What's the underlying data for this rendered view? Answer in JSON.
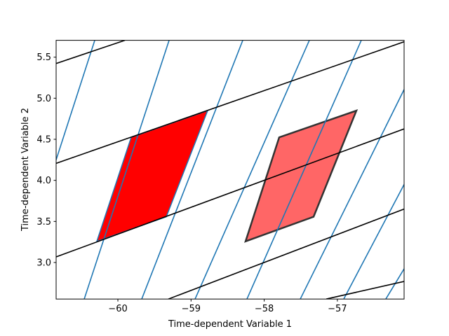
{
  "chart_data": {
    "type": "line",
    "xlabel": "Time-dependent Variable 1",
    "ylabel": "Time-dependent Variable 2",
    "xlim": [
      -60.844,
      -56.088
    ],
    "ylim": [
      2.555,
      5.705
    ],
    "xticks": [
      {
        "value": -60,
        "label": "−60"
      },
      {
        "value": -59,
        "label": "−59"
      },
      {
        "value": -58,
        "label": "−58"
      },
      {
        "value": -57,
        "label": "−57"
      }
    ],
    "yticks": [
      {
        "value": 3,
        "label": "3.0"
      },
      3.5,
      {
        "value": 4,
        "label": "4.0"
      },
      4.5,
      {
        "value": 5,
        "label": "5.0"
      },
      5.5
    ],
    "series": [
      {
        "color": "#1f77b4",
        "x": [
          -60.844,
          -60.316
        ],
        "y": [
          4.25,
          5.705
        ]
      },
      {
        "color": "#1f77b4",
        "x": [
          -60.46,
          -59.3
        ],
        "y": [
          2.555,
          5.705
        ]
      },
      {
        "color": "#1f77b4",
        "x": [
          -59.674,
          -58.293
        ],
        "y": [
          2.555,
          5.705
        ]
      },
      {
        "color": "#1f77b4",
        "x": [
          -58.945,
          -57.383
        ],
        "y": [
          2.555,
          5.705
        ]
      },
      {
        "color": "#1f77b4",
        "x": [
          -58.236,
          -56.673
        ],
        "y": [
          2.555,
          5.705
        ]
      },
      {
        "color": "#1f77b4",
        "x": [
          -57.507,
          -56.088
        ],
        "y": [
          2.555,
          5.106
        ]
      },
      {
        "color": "#1f77b4",
        "x": [
          -56.913,
          -56.088
        ],
        "y": [
          2.555,
          3.95
        ]
      },
      {
        "color": "#1f77b4",
        "x": [
          -56.338,
          -56.088
        ],
        "y": [
          2.555,
          2.923
        ]
      },
      {
        "color": "#000000",
        "x": [
          -60.844,
          -59.904
        ],
        "y": [
          5.423,
          5.705
        ]
      },
      {
        "color": "#000000",
        "x": [
          -60.844,
          -56.088
        ],
        "y": [
          4.207,
          5.688
        ]
      },
      {
        "color": "#000000",
        "x": [
          -60.844,
          -56.088
        ],
        "y": [
          3.068,
          4.627
        ]
      },
      {
        "color": "#000000",
        "x": [
          -59.31,
          -56.088
        ],
        "y": [
          2.555,
          3.651
        ]
      },
      {
        "color": "#000000",
        "x": [
          -57.152,
          -56.088
        ],
        "y": [
          2.555,
          2.769
        ]
      }
    ],
    "polygons": [
      {
        "fill": "#ff0000",
        "alpha": 1,
        "edgecolor": "#1f77b4",
        "x": [
          -60.288,
          -59.818,
          -58.773,
          -59.338
        ],
        "y": [
          3.257,
          4.524,
          4.849,
          3.557
        ]
      },
      {
        "fill": "#ff0000",
        "alpha": 0.6,
        "edgecolor": "#333333",
        "x": [
          -58.255,
          -57.795,
          -56.74,
          -57.325
        ],
        "y": [
          3.257,
          4.524,
          4.849,
          3.557
        ]
      }
    ]
  }
}
